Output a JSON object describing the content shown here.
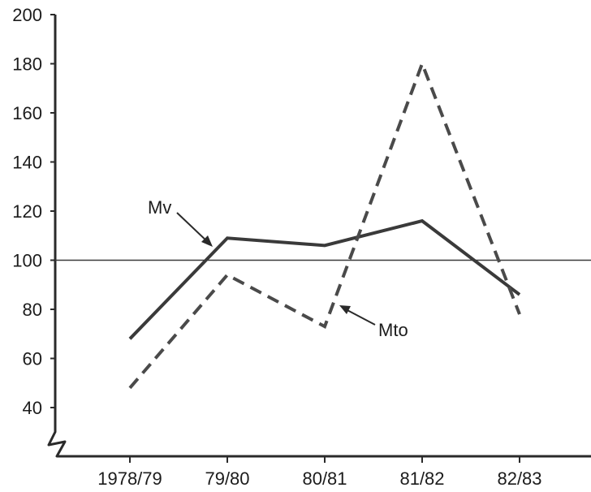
{
  "chart_data": {
    "type": "line",
    "categories": [
      "1978/79",
      "79/80",
      "80/81",
      "81/82",
      "82/83"
    ],
    "series": [
      {
        "name": "Mv",
        "values": [
          68,
          109,
          106,
          116,
          86
        ],
        "style": "solid",
        "color": "#3a3a3a"
      },
      {
        "name": "Mto",
        "values": [
          48,
          94,
          73,
          180,
          78
        ],
        "style": "dashed",
        "color": "#4a4a4a"
      }
    ],
    "reference_line": 100,
    "ylim": [
      22,
      200
    ],
    "yticks": [
      40,
      60,
      80,
      100,
      120,
      140,
      160,
      180,
      200
    ],
    "y_axis_break": true,
    "grid": false,
    "legend": "none (series labelled inline with arrows)",
    "annotations": [
      {
        "text": "Mv",
        "series": "Mv",
        "points_to_category": "79/80"
      },
      {
        "text": "Mto",
        "series": "Mto",
        "points_to_category": "80/81"
      }
    ]
  }
}
